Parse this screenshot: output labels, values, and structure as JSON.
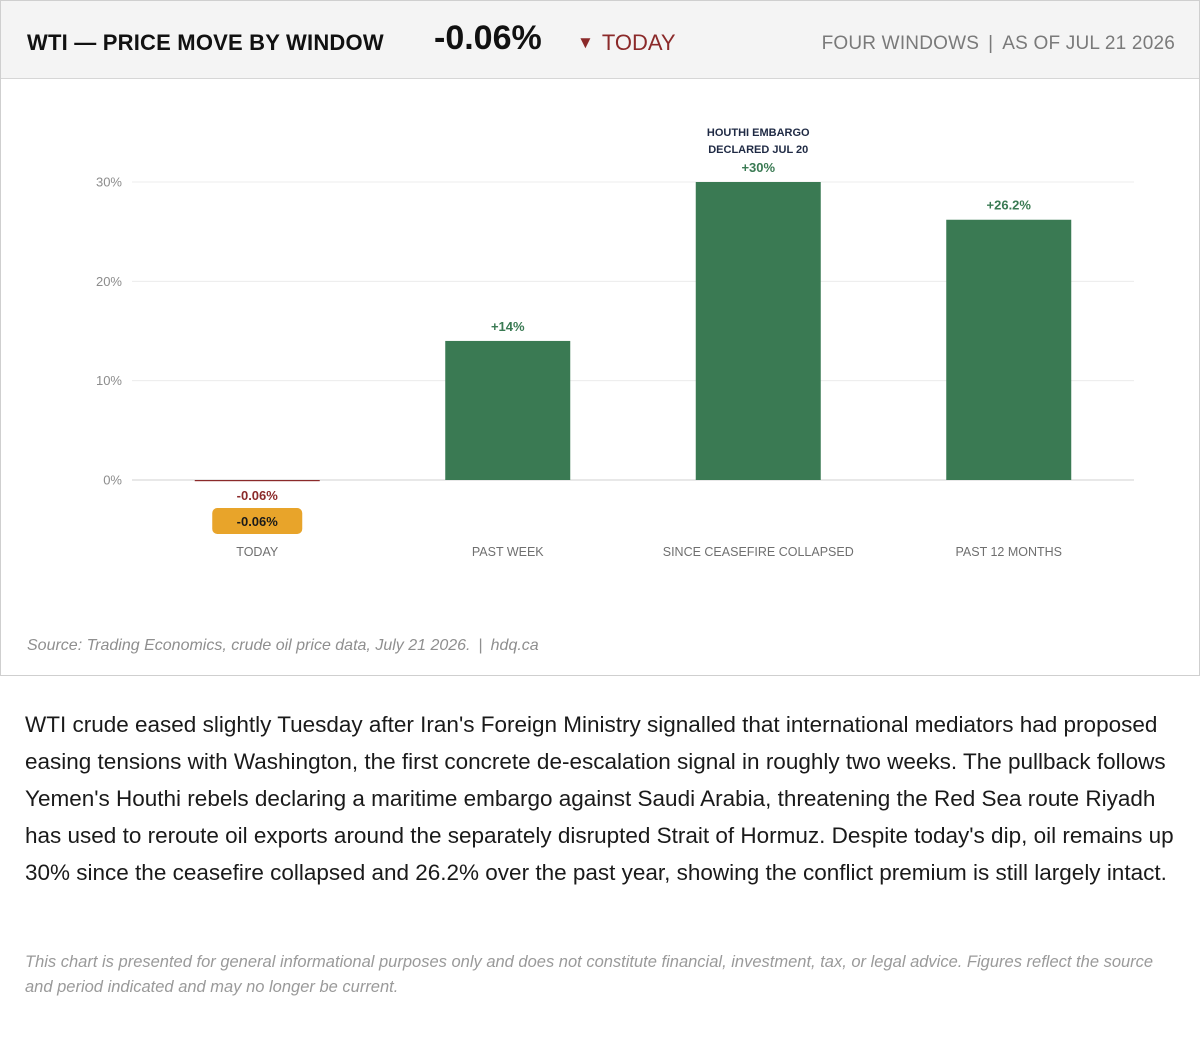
{
  "header": {
    "title": "WTI — PRICE MOVE BY WINDOW",
    "value": "-0.06%",
    "change_arrow": "▼",
    "change_label": "TODAY",
    "meta_left": "FOUR WINDOWS",
    "meta_sep": "|",
    "meta_right": "AS OF JUL 21 2026"
  },
  "colors": {
    "positive": "#3a7a53",
    "negative": "#8b2a2a",
    "badge": "#e8a42a",
    "grid": "#ececec",
    "zero_line": "#d0d0d0"
  },
  "chart_data": {
    "type": "bar",
    "categories": [
      "TODAY",
      "PAST WEEK",
      "SINCE CEASEFIRE COLLAPSED",
      "PAST 12 MONTHS"
    ],
    "values": [
      -0.06,
      14,
      30,
      26.2
    ],
    "value_labels": [
      "-0.06%",
      "+14%",
      "+30%",
      "+26.2%"
    ],
    "ylim": [
      0,
      30
    ],
    "yticks": [
      0,
      10,
      20,
      30
    ],
    "ytick_labels": [
      "0%",
      "10%",
      "20%",
      "30%"
    ],
    "grid": true,
    "annotation": {
      "category": "SINCE CEASEFIRE COLLAPSED",
      "lines": [
        "HOUTHI EMBARGO",
        "DECLARED JUL 20"
      ]
    },
    "highlight_badge": {
      "category": "TODAY",
      "text": "-0.06%"
    }
  },
  "source": {
    "text": "Source: Trading Economics, crude oil price data, July 21 2026.",
    "sep": "|",
    "site": "hdq.ca"
  },
  "body": "WTI crude eased slightly Tuesday after Iran's Foreign Ministry signalled that international mediators had proposed easing tensions with Washington, the first concrete de-escalation signal in roughly two weeks. The pullback follows Yemen's Houthi rebels declaring a maritime embargo against Saudi Arabia, threatening the Red Sea route Riyadh has used to reroute oil exports around the separately disrupted Strait of Hormuz. Despite today's dip, oil remains up 30% since the ceasefire collapsed and 26.2% over the past year, showing the conflict premium is still largely intact.",
  "disclaimer": "This chart is presented for general informational purposes only and does not constitute financial, investment, tax, or legal advice. Figures reflect the source and period indicated and may no longer be current."
}
